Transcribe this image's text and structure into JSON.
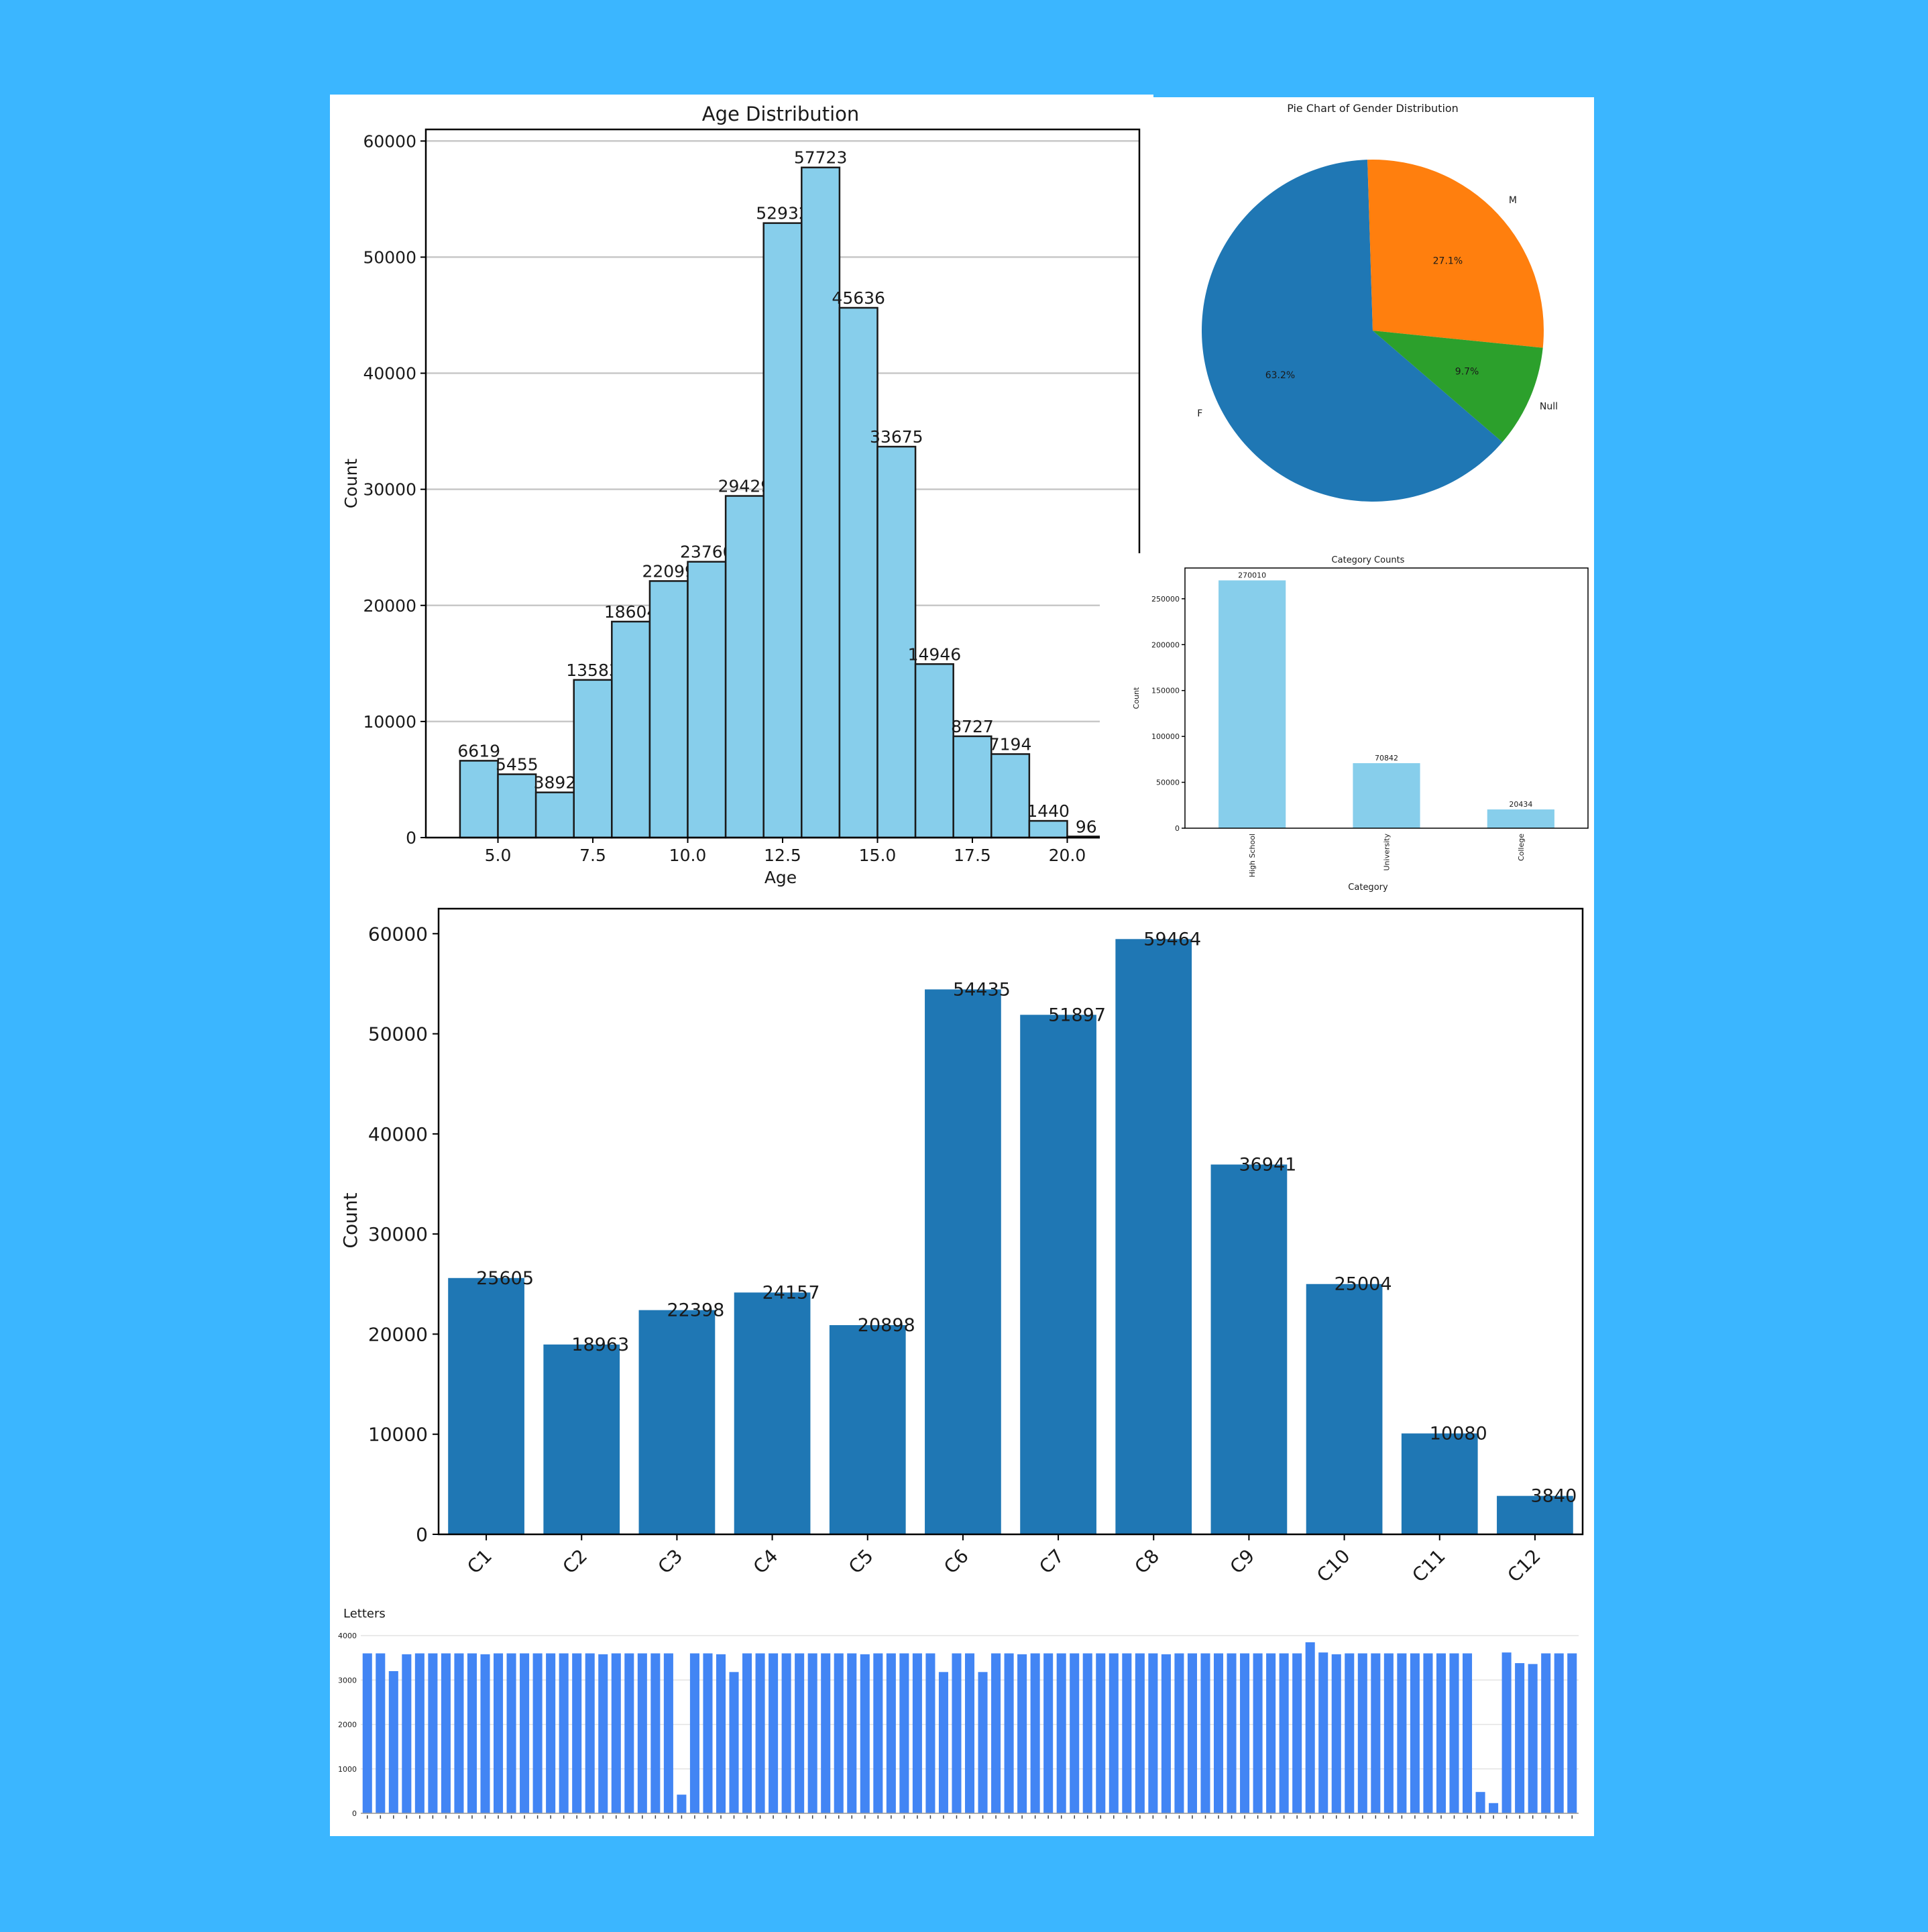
{
  "colors": {
    "background": "#3bb6ff",
    "hist_bar": "#87ceeb",
    "hist_edge": "#1a1a1a",
    "pie_f": "#1f77b4",
    "pie_m": "#ff7f0e",
    "pie_null": "#2ca02c",
    "category_bar": "#87ceeb",
    "c_bar": "#1f77b4",
    "letters_bar": "#4285f4"
  },
  "chart_data": [
    {
      "id": "age",
      "type": "bar",
      "title": "Age Distribution",
      "xlabel": "Age",
      "ylabel": "Count",
      "bin_edges": [
        4,
        5,
        6,
        7,
        8,
        9,
        10,
        11,
        12,
        13,
        14,
        15,
        16,
        17,
        18,
        19,
        20
      ],
      "values": [
        6619,
        5455,
        3892,
        13583,
        18604,
        22099,
        23760,
        29429,
        52932,
        57723,
        45636,
        33675,
        14946,
        8727,
        7194,
        1440,
        96
      ],
      "value_labels": [
        "6619",
        "5455",
        "3892",
        "13583",
        "18604",
        "22099",
        "23760",
        "29429",
        "52932",
        "57723",
        "45636",
        "33675",
        "14946",
        "8727",
        "7194",
        "1440",
        "96"
      ],
      "xticks": [
        "5.0",
        "7.5",
        "10.0",
        "12.5",
        "15.0",
        "17.5",
        "20.0"
      ],
      "xtick_values": [
        5,
        7.5,
        10,
        12.5,
        15,
        17.5,
        20
      ],
      "yticks": [
        "0",
        "10000",
        "20000",
        "30000",
        "40000",
        "50000",
        "60000"
      ],
      "ytick_values": [
        0,
        10000,
        20000,
        30000,
        40000,
        50000,
        60000
      ],
      "xlim": [
        3.1,
        21.9
      ],
      "ylim": [
        0,
        61000
      ],
      "grid": "horizontal"
    },
    {
      "id": "gender",
      "type": "pie",
      "title": "Pie Chart of Gender Distribution",
      "labels": [
        "F",
        "M",
        "Null"
      ],
      "values": [
        63.2,
        27.1,
        9.7
      ],
      "pct_labels": [
        "63.2%",
        "27.1%",
        "9.7%"
      ]
    },
    {
      "id": "category",
      "type": "bar",
      "title": "Category Counts",
      "xlabel": "Category",
      "ylabel": "Count",
      "categories": [
        "High School",
        "University",
        "College"
      ],
      "values": [
        270010,
        70842,
        20434
      ],
      "value_labels": [
        "270010",
        "70842",
        "20434"
      ],
      "yticks": [
        "0",
        "50000",
        "100000",
        "150000",
        "200000",
        "250000"
      ],
      "ytick_values": [
        0,
        50000,
        100000,
        150000,
        200000,
        250000
      ],
      "ylim": [
        0,
        283500
      ]
    },
    {
      "id": "classes",
      "type": "bar",
      "ylabel": "Count",
      "categories": [
        "C1",
        "C2",
        "C3",
        "C4",
        "C5",
        "C6",
        "C7",
        "C8",
        "C9",
        "C10",
        "C11",
        "C12"
      ],
      "values": [
        25605,
        18963,
        22398,
        24157,
        20898,
        54435,
        51897,
        59464,
        36941,
        25004,
        10080,
        3840
      ],
      "value_labels": [
        "25605",
        "18963",
        "22398",
        "24157",
        "20898",
        "54435",
        "51897",
        "59464",
        "36941",
        "25004",
        "10080",
        "3840"
      ],
      "yticks": [
        "0",
        "10000",
        "20000",
        "30000",
        "40000",
        "50000",
        "60000"
      ],
      "ytick_values": [
        0,
        10000,
        20000,
        30000,
        40000,
        50000,
        60000
      ],
      "ylim": [
        0,
        62500
      ]
    },
    {
      "id": "letters",
      "type": "bar",
      "title": "Letters",
      "yticks": [
        "0",
        "1000",
        "2000",
        "3000",
        "4000"
      ],
      "ytick_values": [
        0,
        1000,
        2000,
        3000,
        4000
      ],
      "ylim": [
        0,
        4000
      ],
      "values": [
        3600,
        3600,
        3200,
        3580,
        3600,
        3600,
        3600,
        3600,
        3600,
        3580,
        3600,
        3600,
        3600,
        3600,
        3600,
        3600,
        3600,
        3600,
        3580,
        3600,
        3600,
        3600,
        3600,
        3600,
        420,
        3600,
        3600,
        3580,
        3180,
        3600,
        3600,
        3600,
        3600,
        3600,
        3600,
        3600,
        3600,
        3600,
        3580,
        3600,
        3600,
        3600,
        3600,
        3600,
        3180,
        3600,
        3600,
        3180,
        3600,
        3600,
        3580,
        3600,
        3600,
        3600,
        3600,
        3600,
        3600,
        3600,
        3600,
        3600,
        3600,
        3580,
        3600,
        3600,
        3600,
        3600,
        3600,
        3600,
        3600,
        3600,
        3600,
        3600,
        3850,
        3620,
        3580,
        3600,
        3600,
        3600,
        3600,
        3600,
        3600,
        3600,
        3600,
        3600,
        3600,
        480,
        230,
        3620,
        3380,
        3360,
        3600,
        3600,
        3600
      ]
    }
  ]
}
